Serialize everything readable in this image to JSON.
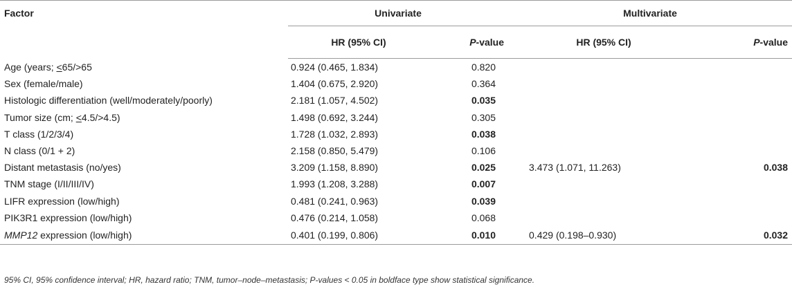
{
  "header": {
    "factor": "Factor",
    "univariate": "Univariate",
    "multivariate": "Multivariate",
    "hr_label": "HR (95% CI)",
    "p_italic": "P",
    "p_suffix": "-value"
  },
  "rows": [
    {
      "factor_pre": "Age (years; ",
      "factor_u": "<",
      "factor_post": "65/>65",
      "hr": "0.924 (0.465, 1.834)",
      "p": "0.820",
      "p_bold": false,
      "mhr": "",
      "mp": ""
    },
    {
      "factor": "Sex (female/male)",
      "hr": "1.404 (0.675, 2.920)",
      "p": "0.364",
      "p_bold": false,
      "mhr": "",
      "mp": ""
    },
    {
      "factor": "Histologic differentiation (well/moderately/poorly)",
      "hr": "2.181 (1.057, 4.502)",
      "p": "0.035",
      "p_bold": true,
      "mhr": "",
      "mp": ""
    },
    {
      "factor_pre": "Tumor size (cm; ",
      "factor_u": "<",
      "factor_post": "4.5/>4.5)",
      "hr": "1.498 (0.692, 3.244)",
      "p": "0.305",
      "p_bold": false,
      "mhr": "",
      "mp": ""
    },
    {
      "factor": "T class (1/2/3/4)",
      "hr": "1.728 (1.032, 2.893)",
      "p": "0.038",
      "p_bold": true,
      "mhr": "",
      "mp": ""
    },
    {
      "factor": "N class (0/1 + 2)",
      "hr": "2.158 (0.850, 5.479)",
      "p": "0.106",
      "p_bold": false,
      "mhr": "",
      "mp": ""
    },
    {
      "factor": "Distant metastasis (no/yes)",
      "hr": "3.209 (1.158, 8.890)",
      "p": "0.025",
      "p_bold": true,
      "mhr": "3.473 (1.071, 11.263)",
      "mp": "0.038"
    },
    {
      "factor": "TNM stage (I/II/III/IV)",
      "hr": "1.993 (1.208, 3.288)",
      "p": "0.007",
      "p_bold": true,
      "mhr": "",
      "mp": ""
    },
    {
      "factor": "LIFR expression (low/high)",
      "hr": "0.481 (0.241, 0.963)",
      "p": "0.039",
      "p_bold": true,
      "mhr": "",
      "mp": ""
    },
    {
      "factor": "PIK3R1 expression (low/high)",
      "hr": "0.476 (0.214, 1.058)",
      "p": "0.068",
      "p_bold": false,
      "mhr": "",
      "mp": ""
    },
    {
      "factor_it": "MMP12",
      "factor_post": " expression (low/high)",
      "hr": "0.401 (0.199, 0.806)",
      "p": "0.010",
      "p_bold": true,
      "mhr": "0.429 (0.198–0.930)",
      "mp": "0.032"
    }
  ],
  "footnote": "95% CI, 95% confidence interval; HR, hazard ratio; TNM, tumor–node–metastasis; P-values < 0.05 in boldface type show statistical significance."
}
